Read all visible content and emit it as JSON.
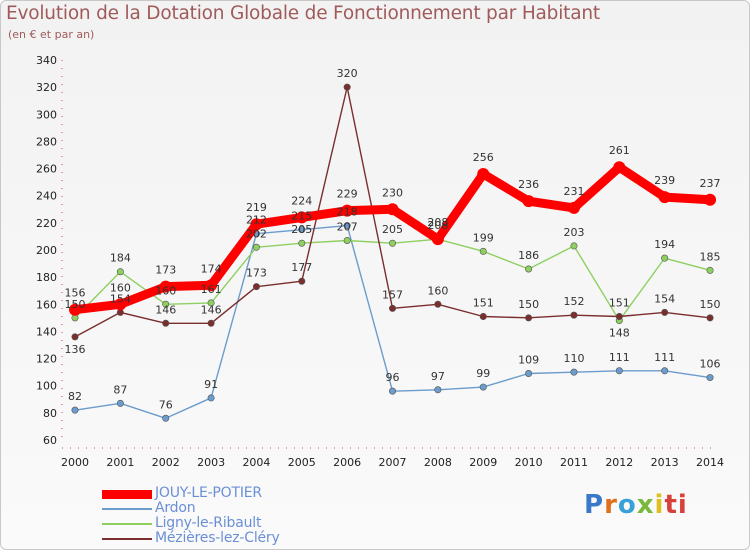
{
  "title": "Evolution de la Dotation Globale de Fonctionnement par Habitant",
  "subtitle": "(en € et par an)",
  "logo": {
    "letters": [
      "P",
      "r",
      "o",
      "x",
      "i",
      "ti"
    ]
  },
  "chart_data": {
    "type": "line",
    "title": "Evolution de la Dotation Globale de Fonctionnement par Habitant",
    "subtitle": "(en € et par an)",
    "xlabel": "",
    "ylabel": "",
    "ylim": [
      60,
      340
    ],
    "ytick_step": 20,
    "grid": false,
    "legend_position": "bottom-left",
    "categories": [
      "2000",
      "2001",
      "2002",
      "2003",
      "2004",
      "2005",
      "2006",
      "2007",
      "2008",
      "2009",
      "2010",
      "2011",
      "2012",
      "2013",
      "2014"
    ],
    "series": [
      {
        "name": "JOUY-LE-POTIER",
        "color": "#ff0000",
        "values": [
          156,
          160,
          173,
          174,
          219,
          224,
          229,
          230,
          208,
          256,
          236,
          231,
          261,
          239,
          237
        ]
      },
      {
        "name": "Ardon",
        "color": "#6b9ccc",
        "values": [
          82,
          87,
          76,
          91,
          212,
          215,
          218,
          96,
          97,
          99,
          109,
          110,
          111,
          111,
          106
        ]
      },
      {
        "name": "Ligny-le-Ribault",
        "color": "#8ed060",
        "values": [
          150,
          184,
          160,
          161,
          202,
          205,
          207,
          205,
          208,
          199,
          186,
          203,
          148,
          194,
          185
        ]
      },
      {
        "name": "Mézières-lez-Cléry",
        "color": "#7a2e2e",
        "values": [
          136,
          154,
          146,
          146,
          173,
          177,
          320,
          157,
          160,
          151,
          150,
          152,
          151,
          154,
          150
        ]
      }
    ]
  }
}
